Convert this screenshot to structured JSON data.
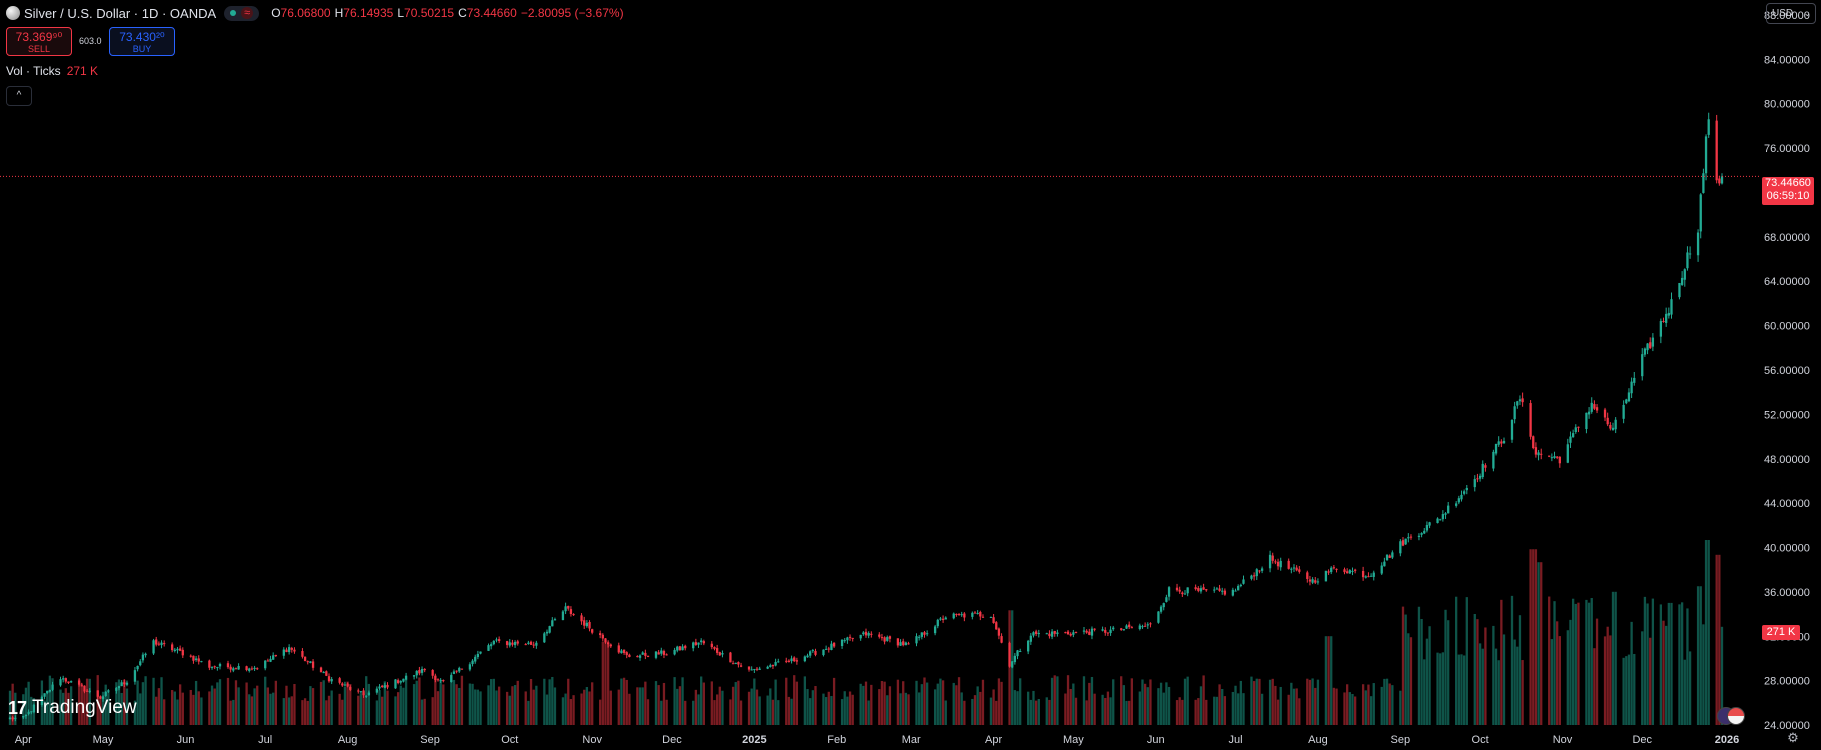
{
  "legend": {
    "symbol": "Silver / U.S. Dollar · 1D · OANDA",
    "wave": "≈",
    "o_key": "O",
    "o_val": "76.06800",
    "h_key": "H",
    "h_val": "76.14935",
    "l_key": "L",
    "l_val": "70.50215",
    "c_key": "C",
    "c_val": "73.44660",
    "change": "−2.80095 (−3.67%)"
  },
  "trade": {
    "sell_price": "73.369⁹⁰",
    "sell_label": "SELL",
    "spread": "603.0",
    "buy_price": "73.430²⁰",
    "buy_label": "BUY"
  },
  "volume_legend": {
    "label": "Vol · Ticks",
    "value": "271 K"
  },
  "collapse_icon": "^",
  "currency": {
    "selected": "USD",
    "chevron": "⌄"
  },
  "last_price": {
    "value": "73.44660",
    "countdown": "06:59:10"
  },
  "volume_tag": "271 K",
  "brand": {
    "mark": "17",
    "name": "TradingView"
  },
  "settings_icon": "⚙",
  "colors": {
    "up": "#22ab94",
    "down": "#f23645",
    "background": "#000000",
    "vol_up": "#0f5449",
    "vol_down": "#7a1c22"
  },
  "chart_data": {
    "type": "candlestick",
    "price_axis": {
      "ticks": [
        "24.00000",
        "28.00000",
        "32.00000",
        "36.00000",
        "40.00000",
        "44.00000",
        "48.00000",
        "52.00000",
        "56.00000",
        "60.00000",
        "64.00000",
        "68.00000",
        "72.00000",
        "76.00000",
        "80.00000",
        "84.00000",
        "88.00000"
      ],
      "range": [
        23.2,
        88.8
      ]
    },
    "time_axis": {
      "labels": [
        "Apr",
        "May",
        "Jun",
        "Jul",
        "Aug",
        "Sep",
        "Oct",
        "Nov",
        "Dec",
        "2025",
        "Feb",
        "Mar",
        "Apr",
        "May",
        "Jun",
        "Jul",
        "Aug",
        "Sep",
        "Oct",
        "Nov",
        "Dec",
        "2026"
      ]
    },
    "last_price": 73.4466,
    "series": [
      {
        "name": "Price",
        "anchors": [
          [
            "2024-04-01",
            24.6
          ],
          [
            "2024-04-15",
            28.3
          ],
          [
            "2024-04-30",
            26.5
          ],
          [
            "2024-05-10",
            28.0
          ],
          [
            "2024-05-20",
            31.5
          ],
          [
            "2024-05-31",
            30.5
          ],
          [
            "2024-06-10",
            29.3
          ],
          [
            "2024-06-28",
            29.2
          ],
          [
            "2024-07-10",
            31.0
          ],
          [
            "2024-07-25",
            28.2
          ],
          [
            "2024-08-07",
            26.7
          ],
          [
            "2024-08-30",
            29.0
          ],
          [
            "2024-09-06",
            27.8
          ],
          [
            "2024-09-25",
            31.5
          ],
          [
            "2024-10-10",
            31.3
          ],
          [
            "2024-10-22",
            34.5
          ],
          [
            "2024-10-31",
            32.8
          ],
          [
            "2024-11-14",
            30.2
          ],
          [
            "2024-11-29",
            30.5
          ],
          [
            "2024-12-12",
            31.5
          ],
          [
            "2024-12-30",
            28.9
          ],
          [
            "2025-01-15",
            29.8
          ],
          [
            "2025-01-31",
            31.2
          ],
          [
            "2025-02-12",
            32.2
          ],
          [
            "2025-02-28",
            31.2
          ],
          [
            "2025-03-14",
            33.8
          ],
          [
            "2025-03-31",
            34.0
          ],
          [
            "2025-04-07",
            29.5
          ],
          [
            "2025-04-15",
            32.2
          ],
          [
            "2025-04-30",
            32.3
          ],
          [
            "2025-05-15",
            32.5
          ],
          [
            "2025-05-30",
            33.0
          ],
          [
            "2025-06-06",
            36.2
          ],
          [
            "2025-06-20",
            36.0
          ],
          [
            "2025-06-30",
            36.0
          ],
          [
            "2025-07-14",
            39.0
          ],
          [
            "2025-07-30",
            37.0
          ],
          [
            "2025-08-08",
            38.2
          ],
          [
            "2025-08-20",
            37.5
          ],
          [
            "2025-09-02",
            40.5
          ],
          [
            "2025-09-15",
            42.5
          ],
          [
            "2025-09-30",
            46.5
          ],
          [
            "2025-10-10",
            50.0
          ],
          [
            "2025-10-16",
            53.5
          ],
          [
            "2025-10-22",
            48.5
          ],
          [
            "2025-10-31",
            48.0
          ],
          [
            "2025-11-12",
            53.0
          ],
          [
            "2025-11-20",
            50.5
          ],
          [
            "2025-12-01",
            57.0
          ],
          [
            "2025-12-12",
            62.0
          ],
          [
            "2025-12-22",
            69.0
          ],
          [
            "2025-12-26",
            79.0
          ],
          [
            "2025-12-29",
            72.5
          ],
          [
            "2025-12-31",
            73.45
          ]
        ]
      },
      {
        "name": "Volume",
        "unit": "ticks",
        "last": "271 K",
        "spikes": [
          [
            "2024-11-06",
            0.45
          ],
          [
            "2025-04-07",
            0.62
          ],
          [
            "2025-08-05",
            0.48
          ],
          [
            "2025-10-21",
            0.95
          ],
          [
            "2025-10-24",
            0.88
          ],
          [
            "2025-11-21",
            0.72
          ],
          [
            "2025-12-12",
            0.66
          ],
          [
            "2025-12-22",
            0.75
          ],
          [
            "2025-12-26",
            1.0
          ],
          [
            "2025-12-29",
            0.92
          ]
        ]
      }
    ]
  }
}
